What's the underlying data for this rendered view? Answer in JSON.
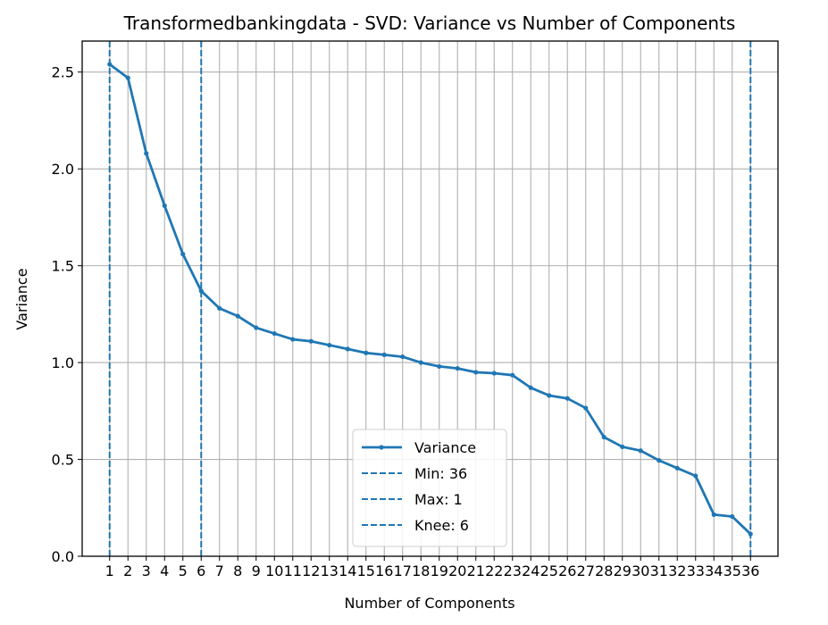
{
  "chart_data": {
    "type": "line",
    "title": "Transformedbankingdata - SVD: Variance vs Number of Components",
    "xlabel": "Number of Components",
    "ylabel": "Variance",
    "xlim": [
      -0.5,
      37.5
    ],
    "ylim": [
      0,
      2.66
    ],
    "x_ticks": [
      1,
      2,
      3,
      4,
      5,
      6,
      7,
      8,
      9,
      10,
      11,
      12,
      13,
      14,
      15,
      16,
      17,
      18,
      19,
      20,
      21,
      22,
      23,
      24,
      25,
      26,
      27,
      28,
      29,
      30,
      31,
      32,
      33,
      34,
      35,
      36
    ],
    "y_ticks": [
      0.0,
      0.5,
      1.0,
      1.5,
      2.0,
      2.5
    ],
    "y_tick_labels": [
      "0.0",
      "0.5",
      "1.0",
      "1.5",
      "2.0",
      "2.5"
    ],
    "grid": true,
    "legend_position": "lower-center",
    "series": [
      {
        "name": "Variance",
        "color": "#1f77b4",
        "x": [
          1,
          2,
          3,
          4,
          5,
          6,
          7,
          8,
          9,
          10,
          11,
          12,
          13,
          14,
          15,
          16,
          17,
          18,
          19,
          20,
          21,
          22,
          23,
          24,
          25,
          26,
          27,
          28,
          29,
          30,
          31,
          32,
          33,
          34,
          35,
          36
        ],
        "values": [
          2.54,
          2.47,
          2.08,
          1.81,
          1.56,
          1.37,
          1.28,
          1.24,
          1.18,
          1.15,
          1.12,
          1.11,
          1.09,
          1.07,
          1.05,
          1.04,
          1.03,
          1.0,
          0.98,
          0.97,
          0.95,
          0.945,
          0.935,
          0.87,
          0.83,
          0.815,
          0.765,
          0.615,
          0.565,
          0.545,
          0.495,
          0.455,
          0.415,
          0.215,
          0.205,
          0.115
        ]
      }
    ],
    "vlines": [
      {
        "name": "Min: 36",
        "x": 36,
        "color": "#1f77b4"
      },
      {
        "name": "Max: 1",
        "x": 1,
        "color": "#1f77b4"
      },
      {
        "name": "Knee: 6",
        "x": 6,
        "color": "#1f77b4"
      }
    ]
  }
}
